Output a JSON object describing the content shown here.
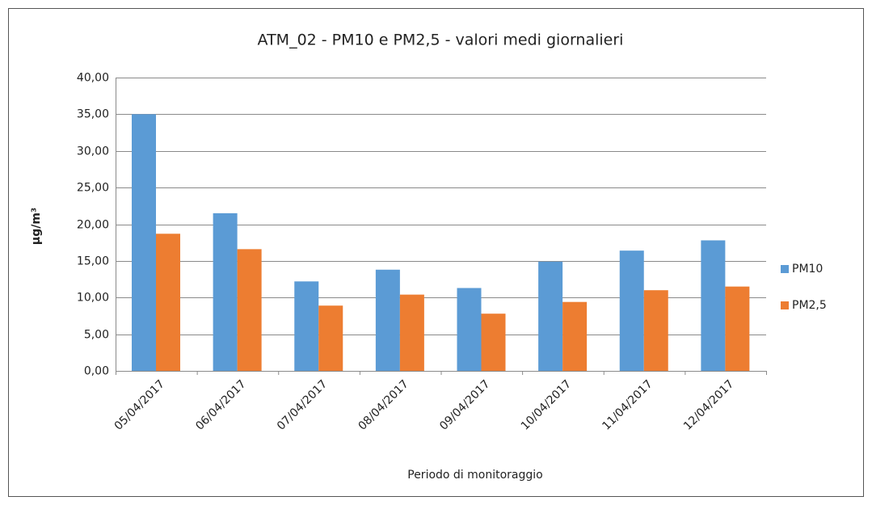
{
  "chart_data": {
    "type": "bar",
    "title": "ATM_02 - PM10 e PM2,5 - valori medi giornalieri",
    "x_label": "Periodo di monitoraggio",
    "y_label": "µg/m³",
    "categories": [
      "05/04/2017",
      "06/04/2017",
      "07/04/2017",
      "08/04/2017",
      "09/04/2017",
      "10/04/2017",
      "11/04/2017",
      "12/04/2017"
    ],
    "series": [
      {
        "name": "PM10",
        "color": "#5b9bd5",
        "values": [
          35.0,
          21.5,
          12.2,
          13.8,
          11.3,
          14.9,
          16.4,
          17.8
        ]
      },
      {
        "name": "PM2,5",
        "color": "#ed7d31",
        "values": [
          18.7,
          16.6,
          8.9,
          10.4,
          7.8,
          9.4,
          11.0,
          11.5
        ]
      }
    ],
    "ylim": [
      0,
      40
    ],
    "yticks": [
      {
        "value": 0,
        "label": "0,00"
      },
      {
        "value": 5,
        "label": "5,00"
      },
      {
        "value": 10,
        "label": "10,00"
      },
      {
        "value": 15,
        "label": "15,00"
      },
      {
        "value": 20,
        "label": "20,00"
      },
      {
        "value": 25,
        "label": "25,00"
      },
      {
        "value": 30,
        "label": "30,00"
      },
      {
        "value": 35,
        "label": "35,00"
      },
      {
        "value": 40,
        "label": "40,00"
      }
    ],
    "grid": true,
    "legend": "right"
  }
}
